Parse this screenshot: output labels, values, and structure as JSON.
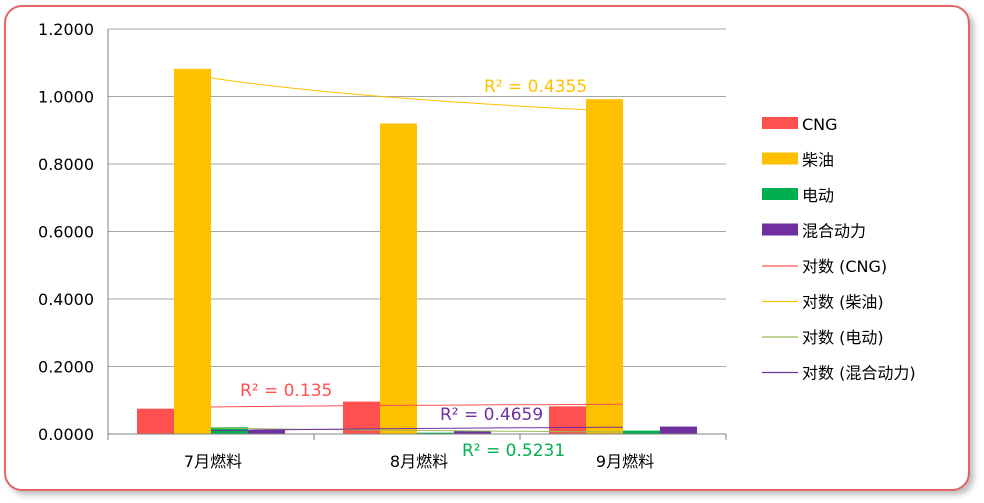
{
  "chart_data": {
    "type": "bar",
    "categories": [
      "7月燃料",
      "8月燃料",
      "9月燃料"
    ],
    "ylim": [
      0,
      1.2
    ],
    "yticks": [
      "0.0000",
      "0.2000",
      "0.4000",
      "0.6000",
      "0.8000",
      "1.0000",
      "1.2000"
    ],
    "grid": true,
    "legend_position": "right",
    "series": [
      {
        "name": "CNG",
        "color": "#ff5050",
        "values": [
          0.075,
          0.096,
          0.082
        ]
      },
      {
        "name": "柴油",
        "color": "#ffc000",
        "values": [
          1.082,
          0.92,
          0.992
        ]
      },
      {
        "name": "电动",
        "color": "#00b050",
        "values": [
          0.02,
          0.004,
          0.01
        ]
      },
      {
        "name": "混合动力",
        "color": "#7030a0",
        "values": [
          0.012,
          0.01,
          0.022
        ]
      }
    ],
    "trendlines": [
      {
        "name": "对数 (CNG)",
        "color": "#ff5050",
        "type": "log",
        "start": 0.08,
        "end": 0.088,
        "r2_label": "R² = 0.135",
        "label_color": "#ff5050"
      },
      {
        "name": "对数 (柴油)",
        "color": "#ffc000",
        "type": "log",
        "start": 1.055,
        "end": 0.955,
        "r2_label": "R² = 0.4355",
        "label_color": "#ffc000"
      },
      {
        "name": "对数 (电动)",
        "color": "#9bbb59",
        "type": "log",
        "start": 0.018,
        "end": 0.006,
        "r2_label": "R² = 0.5231",
        "label_color": "#00b050"
      },
      {
        "name": "对数 (混合动力)",
        "color": "#7030a0",
        "type": "log",
        "start": 0.01,
        "end": 0.02,
        "r2_label": "R² = 0.4659",
        "label_color": "#7030a0"
      }
    ]
  }
}
